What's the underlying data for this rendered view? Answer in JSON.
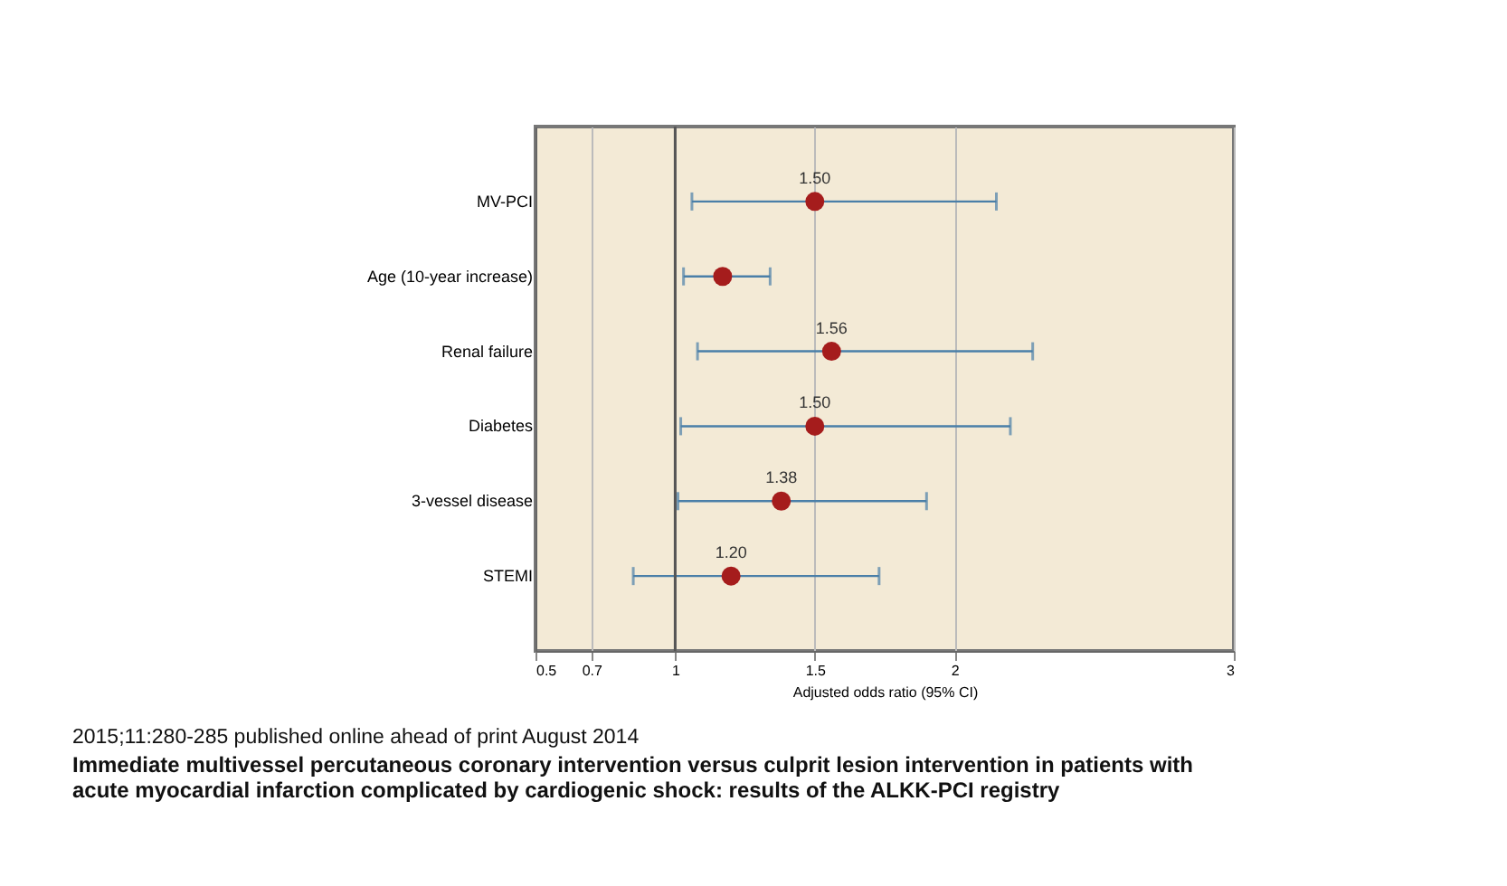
{
  "chart_data": {
    "type": "scatter",
    "orientation": "horizontal",
    "categories": [
      "MV-PCI",
      "Age (10-year increase)",
      "Renal failure",
      "Diabetes",
      "3-vessel disease",
      "STEMI"
    ],
    "series": [
      {
        "color": "#a51c1c",
        "values": [
          1.5,
          1.17,
          1.56,
          1.5,
          1.38,
          1.2
        ],
        "errors": [
          [
            1.06,
            2.15
          ],
          [
            1.03,
            1.34
          ],
          [
            1.08,
            2.28
          ],
          [
            1.02,
            2.2
          ],
          [
            1.01,
            1.9
          ],
          [
            0.85,
            1.73
          ]
        ],
        "value_labels": [
          "1.50",
          null,
          "1.56",
          "1.50",
          "1.38",
          "1.20"
        ]
      }
    ],
    "xlabel": "Adjusted odds ratio (95% CI)",
    "xlim": [
      0.5,
      3
    ],
    "xticks": [
      0.5,
      0.7,
      1,
      1.5,
      2,
      3
    ],
    "grid": "x",
    "marker": "circle",
    "ref_lines": [
      {
        "axis": "x",
        "value": 1,
        "color": "#555555"
      }
    ],
    "annotations": [
      "2015;11:280-285  published online ahead of print August 2014",
      "Immediate multivessel percutaneous coronary intervention versus culprit lesion intervention in patients with acute myocardial infarction complicated by cardiogenic shock: results of the ALKK-PCI registry"
    ]
  }
}
